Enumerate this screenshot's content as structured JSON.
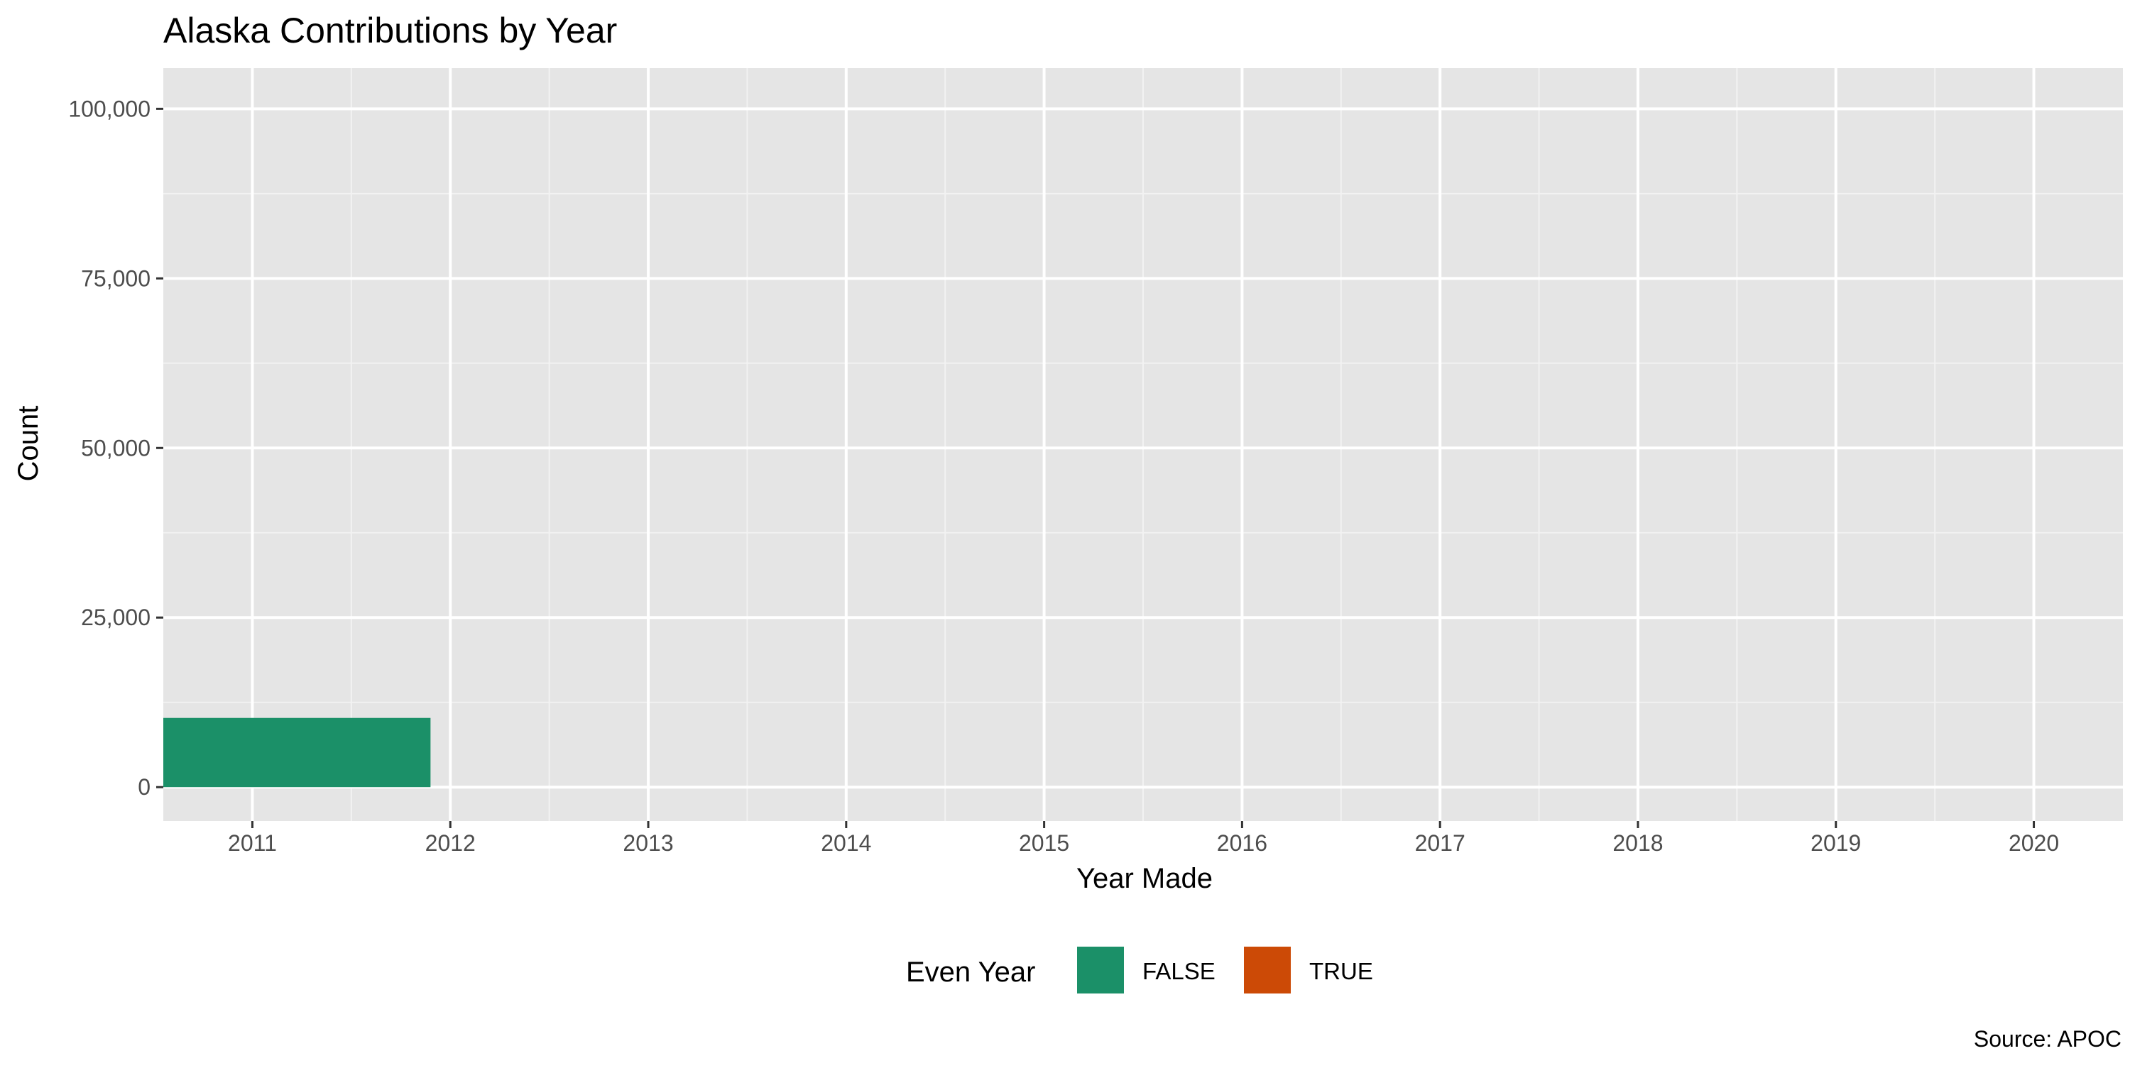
{
  "chart_data": {
    "type": "bar",
    "title": "Alaska Contributions by Year",
    "xlabel": "Year Made",
    "ylabel": "Count",
    "caption": "Source: APOC",
    "x_ticks": [
      "2011",
      "2012",
      "2013",
      "2014",
      "2015",
      "2016",
      "2017",
      "2018",
      "2019",
      "2020"
    ],
    "y_ticks": [
      0,
      25000,
      50000,
      75000,
      100000
    ],
    "y_tick_labels": [
      "0",
      "25,000",
      "50,000",
      "75,000",
      "100,000"
    ],
    "xlim": [
      2010.55,
      2020.45
    ],
    "ylim": [
      -5000,
      106000
    ],
    "grid": true,
    "bars": [
      {
        "x_start": 2010.55,
        "x_end": 2011.9,
        "value": 10200,
        "even_year": "FALSE"
      }
    ],
    "legend": {
      "title": "Even Year",
      "position": "bottom",
      "items": [
        {
          "label": "FALSE",
          "color": "#1B9068"
        },
        {
          "label": "TRUE",
          "color": "#CC4A06"
        }
      ]
    },
    "colors": {
      "panel_background": "#E5E5E5",
      "grid_line": "#FFFFFF"
    }
  }
}
